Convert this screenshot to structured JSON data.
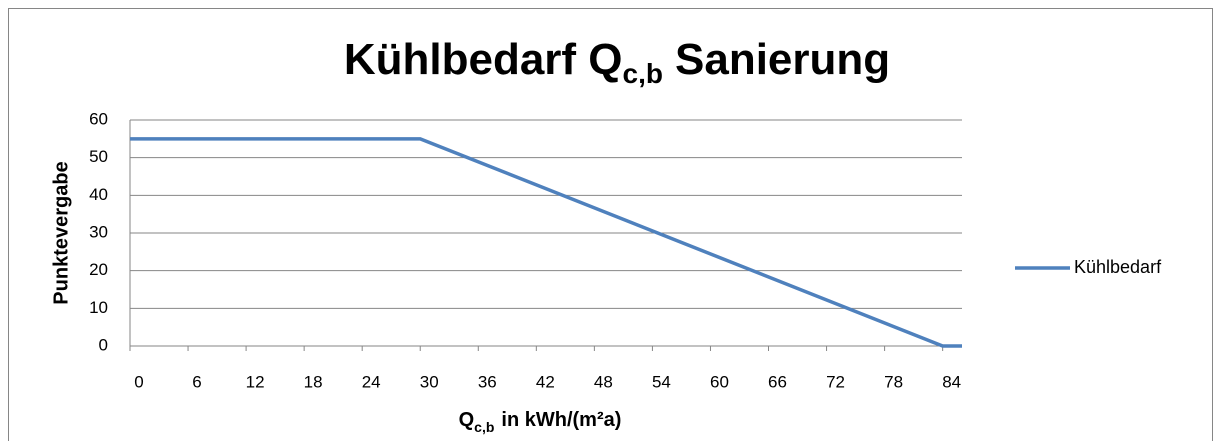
{
  "chart_data": {
    "type": "line",
    "title": [
      "Kühlbedarf Q",
      "c,b",
      "Sanierung"
    ],
    "xlabel": [
      "Q",
      "c,b",
      "in kWh/(m²a)"
    ],
    "ylabel": "Punktevergabe",
    "x": [
      0,
      30,
      84,
      86
    ],
    "series": [
      {
        "name": "Kühlbedarf",
        "color": "#4f81bd",
        "values": [
          55,
          55,
          0,
          0
        ]
      }
    ],
    "xlim": [
      0,
      86
    ],
    "xticks": [
      0,
      6,
      12,
      18,
      24,
      30,
      36,
      42,
      48,
      54,
      60,
      66,
      72,
      78,
      84
    ],
    "ylim": [
      0,
      60
    ],
    "yticks": [
      0,
      10,
      20,
      30,
      40,
      50,
      60
    ],
    "grid": true,
    "legend": "right"
  }
}
